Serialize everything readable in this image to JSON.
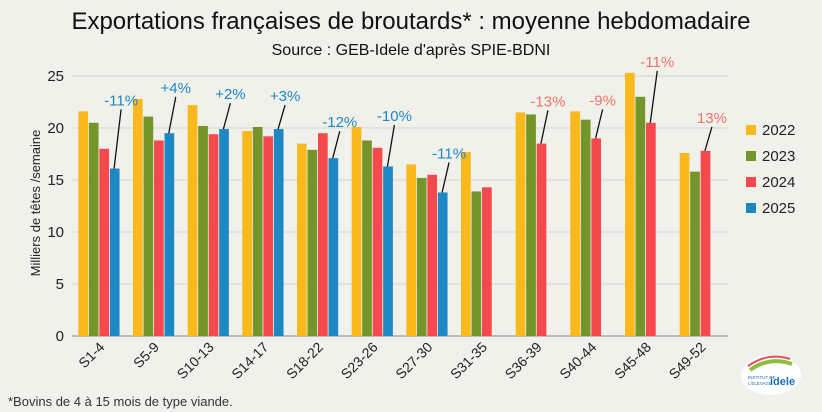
{
  "chart_data": {
    "type": "bar",
    "title": "Exportations françaises de broutards* : moyenne hebdomadaire",
    "subtitle": "Source : GEB-Idele d'après SPIE-BDNI",
    "ylabel": "Milliers de têtes /semaine",
    "xlabel": "",
    "ylim": [
      0,
      25
    ],
    "yticks": [
      0,
      5,
      10,
      15,
      20,
      25
    ],
    "grid": true,
    "legend_position": "right",
    "categories": [
      "S1-4",
      "S5-9",
      "S10-13",
      "S14-17",
      "S18-22",
      "S23-26",
      "S27-30",
      "S31-35",
      "S36-39",
      "S40-44",
      "S45-48",
      "S49-52"
    ],
    "series": [
      {
        "name": "2022",
        "color": "#f9b81c",
        "values": [
          21.6,
          22.8,
          22.2,
          19.7,
          18.5,
          20.1,
          16.5,
          17.7,
          21.5,
          21.6,
          25.3,
          17.6
        ]
      },
      {
        "name": "2023",
        "color": "#74952a",
        "values": [
          20.5,
          21.1,
          20.2,
          20.1,
          17.9,
          18.8,
          15.2,
          13.9,
          21.3,
          20.8,
          23.0,
          15.8
        ]
      },
      {
        "name": "2024",
        "color": "#f5494e",
        "values": [
          18.0,
          18.8,
          19.4,
          19.2,
          19.5,
          18.1,
          15.5,
          14.3,
          18.5,
          19.0,
          20.5,
          17.8
        ]
      },
      {
        "name": "2025",
        "color": "#1e88c4",
        "values": [
          16.1,
          19.5,
          19.9,
          19.9,
          17.1,
          16.3,
          13.8,
          null,
          null,
          null,
          null,
          null
        ]
      }
    ],
    "annotations": [
      {
        "category": "S1-4",
        "text": "-11%",
        "series": "2025",
        "color": "#1e88c4"
      },
      {
        "category": "S5-9",
        "text": "+4%",
        "series": "2025",
        "color": "#1e88c4"
      },
      {
        "category": "S10-13",
        "text": "+2%",
        "series": "2025",
        "color": "#1e88c4"
      },
      {
        "category": "S14-17",
        "text": "+3%",
        "series": "2025",
        "color": "#1e88c4"
      },
      {
        "category": "S18-22",
        "text": "-12%",
        "series": "2025",
        "color": "#1e88c4"
      },
      {
        "category": "S23-26",
        "text": "-10%",
        "series": "2025",
        "color": "#1e88c4"
      },
      {
        "category": "S27-30",
        "text": "-11%",
        "series": "2025",
        "color": "#1e88c4"
      },
      {
        "category": "S36-39",
        "text": "-13%",
        "series": "2024",
        "color": "#f07468"
      },
      {
        "category": "S40-44",
        "text": "-9%",
        "series": "2024",
        "color": "#f07468"
      },
      {
        "category": "S45-48",
        "text": "-11%",
        "series": "2024",
        "color": "#f07468"
      },
      {
        "category": "S49-52",
        "text": "13%",
        "series": "2024",
        "color": "#f07468"
      }
    ]
  },
  "footnote": "*Bovins de 4 à 15 mois de type viande.",
  "logo": {
    "line1": "INSTITUT DE",
    "line2": "L'ÉLEVAGE",
    "name": "idele"
  }
}
